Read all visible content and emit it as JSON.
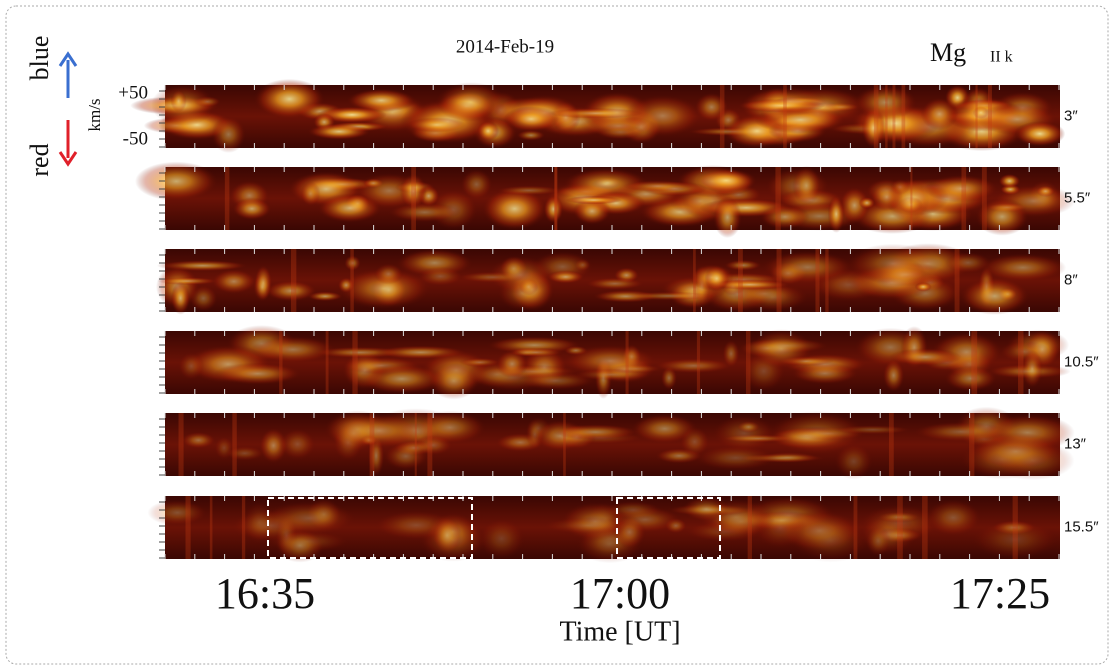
{
  "header": {
    "date": "2014-Feb-19",
    "line": "Mg",
    "line_ion": "II k"
  },
  "axis": {
    "blue": "blue",
    "red": "red",
    "unit": "km/s",
    "top": "+50",
    "bottom": "-50",
    "x_label": "Time [UT]",
    "x_ticks": [
      "16:35",
      "17:00",
      "17:25"
    ]
  },
  "panels": [
    {
      "label": "3″"
    },
    {
      "label": "5.5″"
    },
    {
      "label": "8″"
    },
    {
      "label": "10.5″"
    },
    {
      "label": "13″"
    },
    {
      "label": "15.5″"
    }
  ]
}
